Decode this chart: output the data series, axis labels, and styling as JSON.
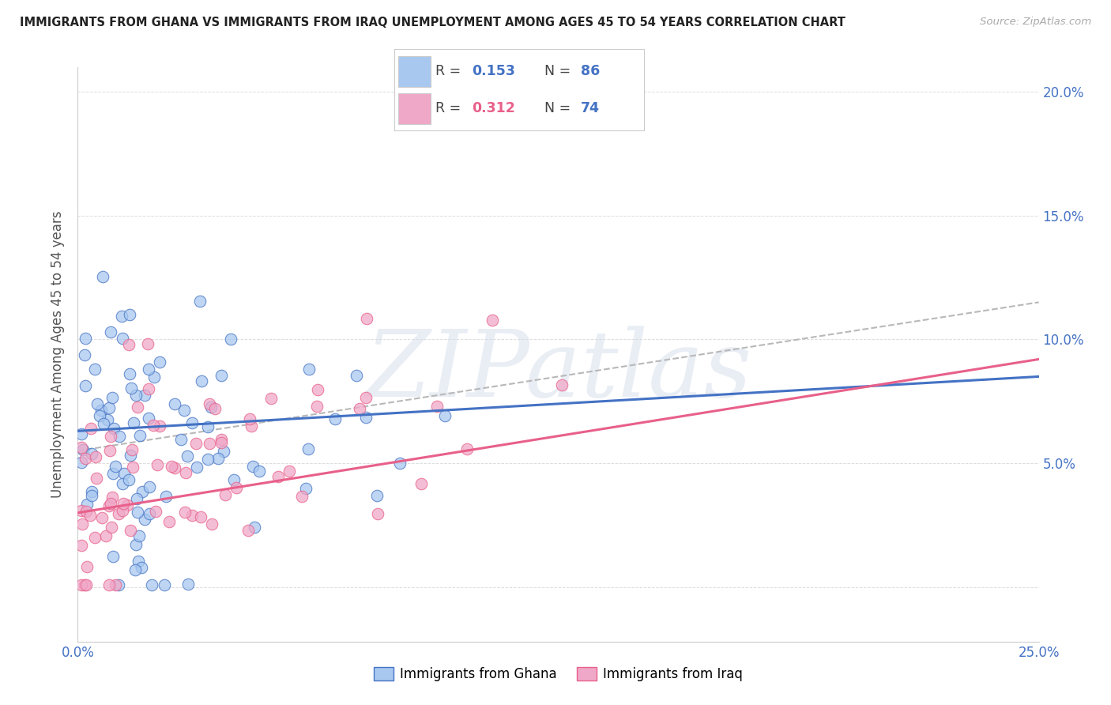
{
  "title": "IMMIGRANTS FROM GHANA VS IMMIGRANTS FROM IRAQ UNEMPLOYMENT AMONG AGES 45 TO 54 YEARS CORRELATION CHART",
  "source": "Source: ZipAtlas.com",
  "ylabel": "Unemployment Among Ages 45 to 54 years",
  "xlim": [
    0,
    0.25
  ],
  "ylim": [
    -0.022,
    0.21
  ],
  "color_ghana": "#a8c8f0",
  "color_iraq": "#f0a8c8",
  "line_color_ghana": "#4472c4",
  "line_color_iraq": "#e8608a",
  "line_color_dashed": "#b8b8b8",
  "text_color_blue": "#4472c4",
  "watermark": "ZIPatlas",
  "R_ghana": 0.153,
  "N_ghana": 86,
  "R_iraq": 0.312,
  "N_iraq": 74,
  "legend_label_ghana": "Immigrants from Ghana",
  "legend_label_iraq": "Immigrants from Iraq",
  "ghana_line": [
    0.0,
    0.25,
    0.063,
    0.085
  ],
  "iraq_line": [
    0.0,
    0.25,
    0.03,
    0.092
  ],
  "dashed_line": [
    0.0,
    0.25,
    0.055,
    0.115
  ]
}
